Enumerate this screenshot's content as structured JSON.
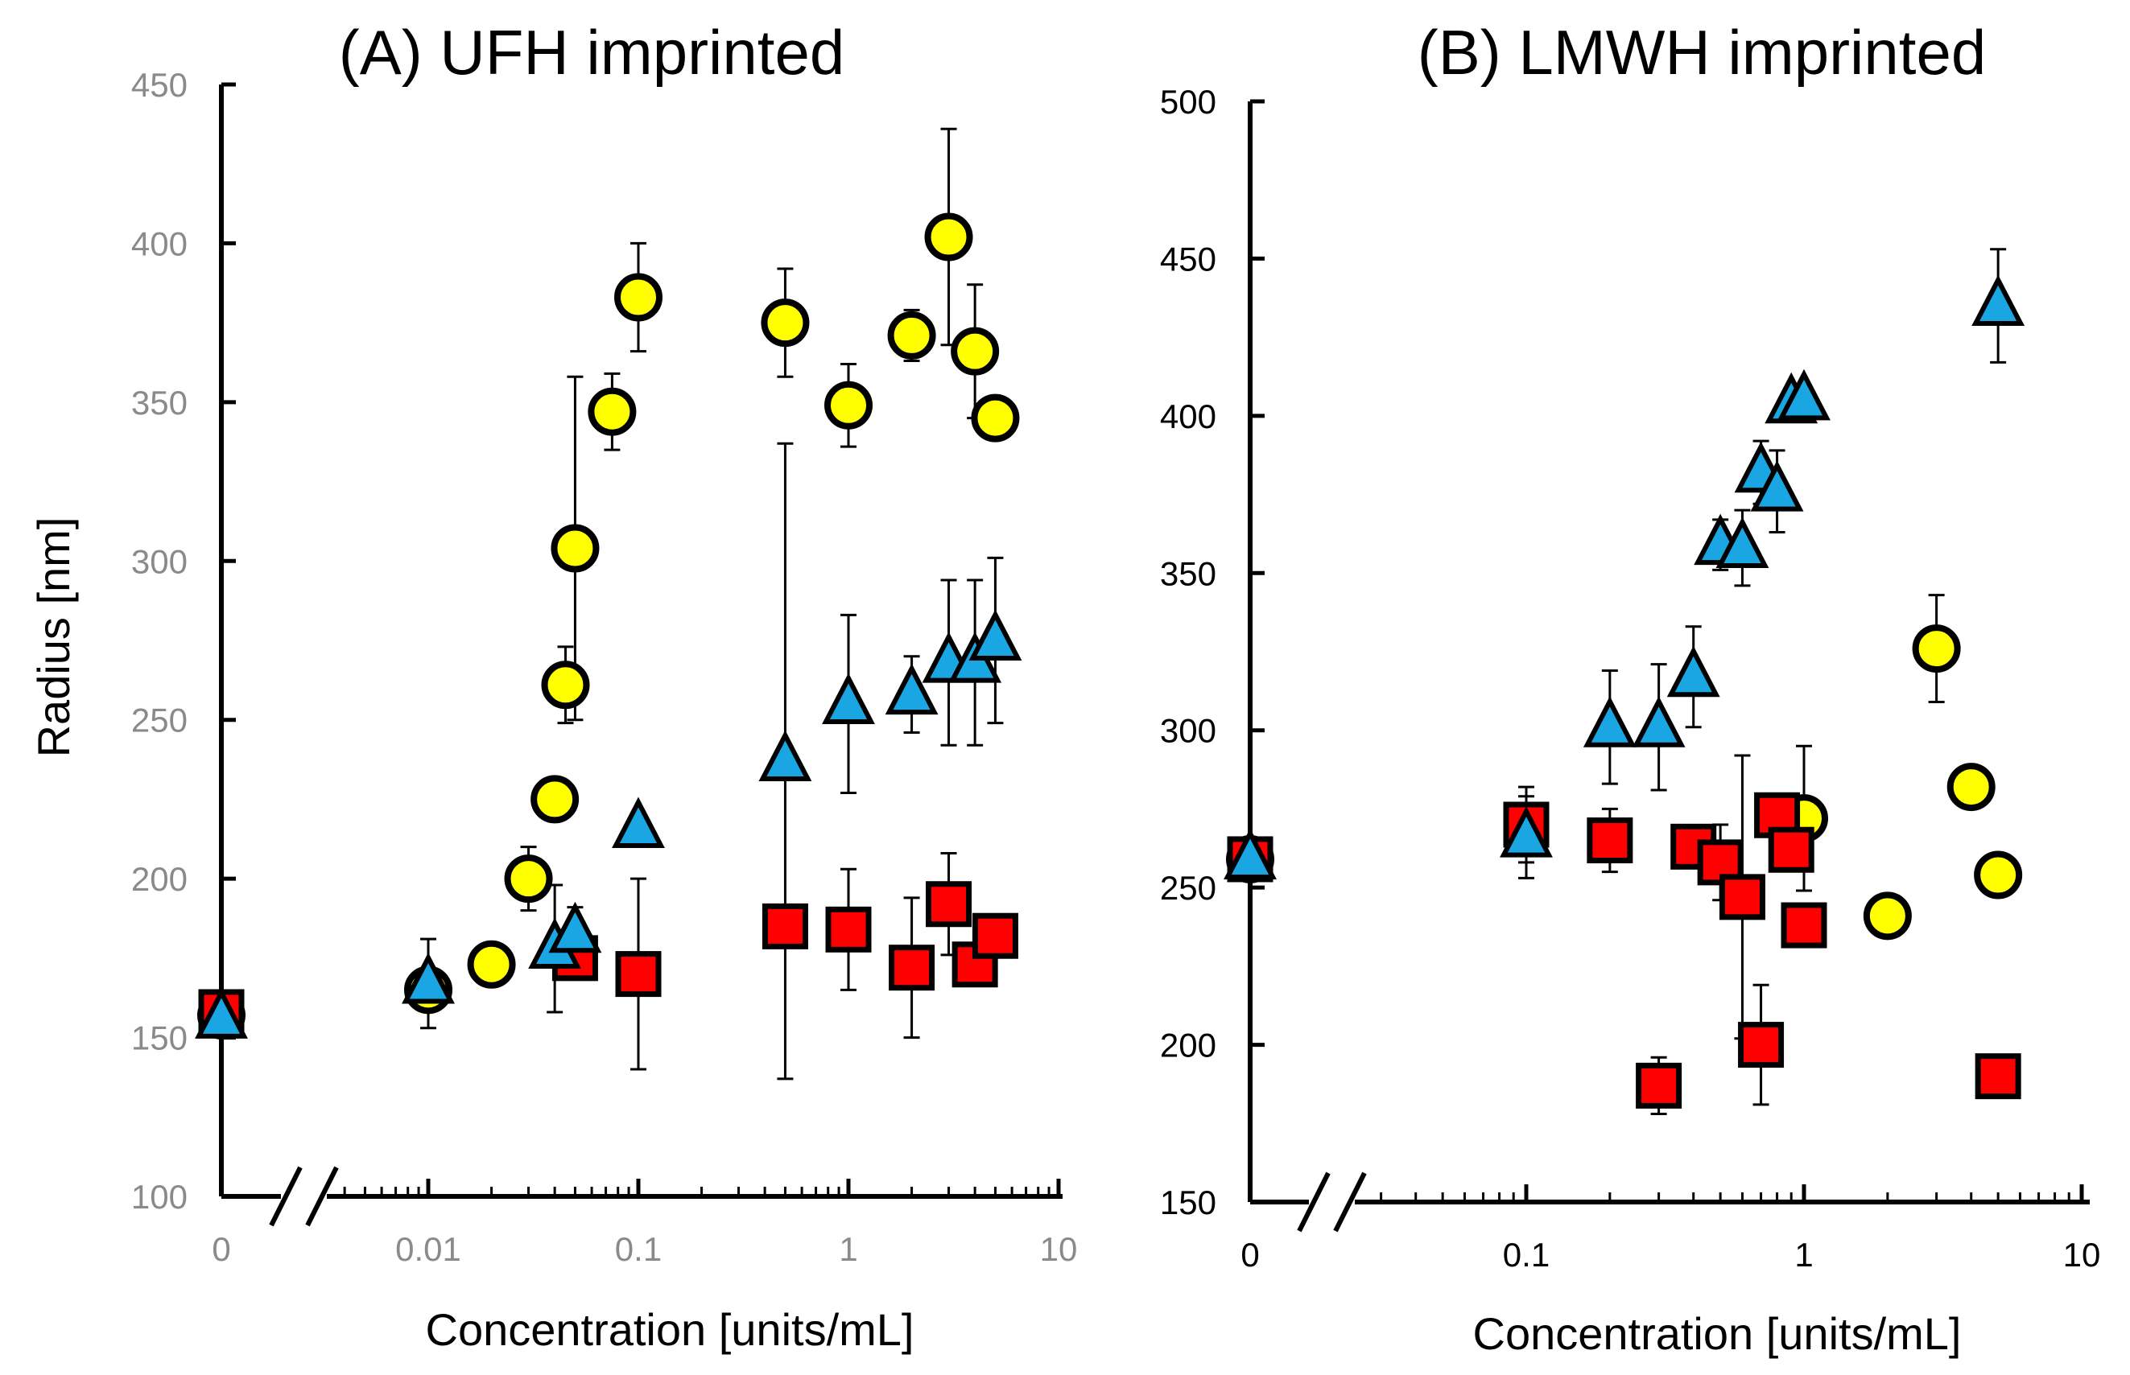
{
  "colors": {
    "circle": "#ffff00",
    "triangle": "#1aa6e2",
    "square": "#ff0000",
    "outline": "#000000"
  },
  "chart_data": [
    {
      "type": "scatter",
      "panel": "A",
      "title": "(A) UFH imprinted",
      "xlabel": "Concentration [units/mL]",
      "ylabel": "Radius [nm]",
      "xscale": "log",
      "xlim": [
        0.003,
        10
      ],
      "ylim": [
        100,
        450
      ],
      "yticks": [
        "100",
        "150",
        "200",
        "250",
        "300",
        "350",
        "400",
        "450"
      ],
      "xticks": [
        {
          "label": "0",
          "x": 0
        },
        {
          "label": "0.01",
          "x": 0.01
        },
        {
          "label": "0.1",
          "x": 0.1
        },
        {
          "label": "1",
          "x": 1
        },
        {
          "label": "10",
          "x": 10
        }
      ],
      "axis_break": true,
      "series": [
        {
          "name": "circle",
          "marker": "circle",
          "points": [
            {
              "x": 0,
              "y": 157,
              "err": 0
            },
            {
              "x": 0.01,
              "y": 165,
              "err": 0
            },
            {
              "x": 0.02,
              "y": 173,
              "err": 0
            },
            {
              "x": 0.03,
              "y": 200,
              "err": 10
            },
            {
              "x": 0.04,
              "y": 225,
              "err": 0
            },
            {
              "x": 0.045,
              "y": 261,
              "err": 12
            },
            {
              "x": 0.05,
              "y": 304,
              "err": 54
            },
            {
              "x": 0.075,
              "y": 347,
              "err": 12
            },
            {
              "x": 0.1,
              "y": 383,
              "err": 17
            },
            {
              "x": 0.5,
              "y": 375,
              "err": 17
            },
            {
              "x": 1,
              "y": 349,
              "err": 13
            },
            {
              "x": 2,
              "y": 371,
              "err": 8
            },
            {
              "x": 3,
              "y": 402,
              "err": 34
            },
            {
              "x": 4,
              "y": 366,
              "err": 21
            },
            {
              "x": 5,
              "y": 345,
              "err": 0
            }
          ]
        },
        {
          "name": "square",
          "marker": "square",
          "points": [
            {
              "x": 0,
              "y": 158,
              "err": 0
            },
            {
              "x": 0.05,
              "y": 175,
              "err": 0
            },
            {
              "x": 0.1,
              "y": 170,
              "err": 30
            },
            {
              "x": 0.5,
              "y": 185,
              "err": 0
            },
            {
              "x": 1,
              "y": 184,
              "err": 19
            },
            {
              "x": 2,
              "y": 172,
              "err": 22
            },
            {
              "x": 3,
              "y": 192,
              "err": 16
            },
            {
              "x": 4,
              "y": 173,
              "err": 0
            },
            {
              "x": 5,
              "y": 182,
              "err": 0
            }
          ]
        },
        {
          "name": "triangle",
          "marker": "triangle",
          "points": [
            {
              "x": 0,
              "y": 156,
              "err": 0
            },
            {
              "x": 0.01,
              "y": 167,
              "err": 14
            },
            {
              "x": 0.04,
              "y": 178,
              "err": 20
            },
            {
              "x": 0.05,
              "y": 183,
              "err": 8
            },
            {
              "x": 0.1,
              "y": 216,
              "err": 0
            },
            {
              "x": 0.5,
              "y": 237,
              "err": 100
            },
            {
              "x": 1,
              "y": 255,
              "err": 28
            },
            {
              "x": 2,
              "y": 258,
              "err": 12
            },
            {
              "x": 3,
              "y": 268,
              "err": 26
            },
            {
              "x": 4,
              "y": 268,
              "err": 26
            },
            {
              "x": 5,
              "y": 275,
              "err": 26
            }
          ]
        }
      ]
    },
    {
      "type": "scatter",
      "panel": "B",
      "title": "(B) LMWH imprinted",
      "xlabel": "Concentration [units/mL]",
      "ylabel": "",
      "xscale": "log",
      "xlim": [
        0.03,
        10
      ],
      "ylim": [
        150,
        500
      ],
      "yticks": [
        "150",
        "200",
        "250",
        "300",
        "350",
        "400",
        "450",
        "500"
      ],
      "xticks": [
        {
          "label": "0",
          "x": 0
        },
        {
          "label": "0.1",
          "x": 0.1
        },
        {
          "label": "1",
          "x": 1
        },
        {
          "label": "10",
          "x": 10
        }
      ],
      "axis_break": true,
      "series": [
        {
          "name": "circle",
          "marker": "circle",
          "points": [
            {
              "x": 0,
              "y": 259,
              "err": 0
            },
            {
              "x": 1,
              "y": 272,
              "err": 23
            },
            {
              "x": 2,
              "y": 241,
              "err": 0
            },
            {
              "x": 3,
              "y": 326,
              "err": 17
            },
            {
              "x": 4,
              "y": 282,
              "err": 0
            },
            {
              "x": 5,
              "y": 254,
              "err": 0
            }
          ]
        },
        {
          "name": "square",
          "marker": "square",
          "points": [
            {
              "x": 0,
              "y": 259,
              "err": 0
            },
            {
              "x": 0.1,
              "y": 270,
              "err": 12
            },
            {
              "x": 0.2,
              "y": 265,
              "err": 10
            },
            {
              "x": 0.3,
              "y": 187,
              "err": 9
            },
            {
              "x": 0.4,
              "y": 263,
              "err": 0
            },
            {
              "x": 0.5,
              "y": 258,
              "err": 12
            },
            {
              "x": 0.6,
              "y": 247,
              "err": 45
            },
            {
              "x": 0.7,
              "y": 200,
              "err": 19
            },
            {
              "x": 0.8,
              "y": 273,
              "err": 0
            },
            {
              "x": 0.9,
              "y": 262,
              "err": 0
            },
            {
              "x": 1,
              "y": 238,
              "err": 0
            },
            {
              "x": 5,
              "y": 190,
              "err": 0
            }
          ]
        },
        {
          "name": "triangle",
          "marker": "triangle",
          "points": [
            {
              "x": 0,
              "y": 259,
              "err": 0
            },
            {
              "x": 0.1,
              "y": 266,
              "err": 13
            },
            {
              "x": 0.2,
              "y": 301,
              "err": 18
            },
            {
              "x": 0.3,
              "y": 301,
              "err": 20
            },
            {
              "x": 0.4,
              "y": 317,
              "err": 16
            },
            {
              "x": 0.5,
              "y": 359,
              "err": 8
            },
            {
              "x": 0.6,
              "y": 358,
              "err": 12
            },
            {
              "x": 0.7,
              "y": 382,
              "err": 10
            },
            {
              "x": 0.8,
              "y": 376,
              "err": 13
            },
            {
              "x": 0.9,
              "y": 404,
              "err": 0
            },
            {
              "x": 1,
              "y": 405,
              "err": 0
            },
            {
              "x": 5,
              "y": 435,
              "err": 18
            }
          ]
        }
      ]
    }
  ]
}
